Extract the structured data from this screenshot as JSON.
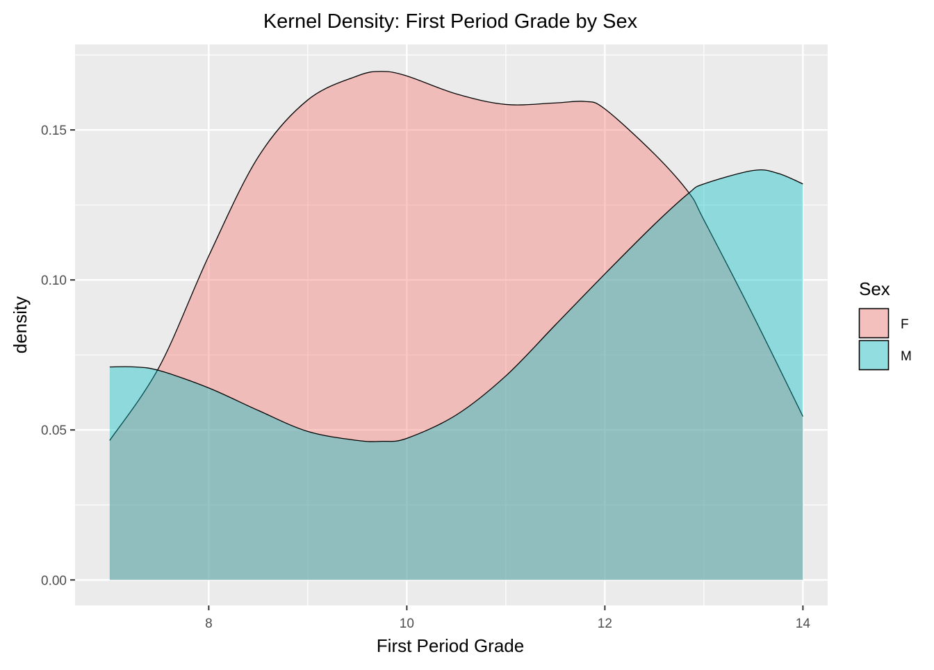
{
  "chart_data": {
    "type": "area",
    "title": "Kernel Density: First Period Grade by Sex",
    "xlabel": "First Period Grade",
    "ylabel": "density",
    "xlim": [
      6.65,
      14.25
    ],
    "ylim": [
      -0.0085,
      0.1785
    ],
    "x_ticks": [
      8,
      10,
      12,
      14
    ],
    "x_tick_labels": [
      "8",
      "10",
      "12",
      "14"
    ],
    "y_ticks": [
      0.0,
      0.05,
      0.1,
      0.15
    ],
    "y_tick_labels": [
      "0.00",
      "0.05",
      "0.10",
      "0.15"
    ],
    "grid": true,
    "legend": {
      "title": "Sex",
      "position": "right",
      "entries": [
        {
          "label": "F",
          "color": "#F8766D"
        },
        {
          "label": "M",
          "color": "#00BFC4"
        }
      ]
    },
    "series": [
      {
        "name": "F",
        "color": "#F8766D",
        "opacity": 0.4,
        "x": [
          7.0,
          7.5,
          8.0,
          8.5,
          9.0,
          9.5,
          9.75,
          10.0,
          10.5,
          11.0,
          11.5,
          11.8,
          12.0,
          12.5,
          12.85,
          13.0,
          13.5,
          14.0
        ],
        "y": [
          0.0465,
          0.071,
          0.108,
          0.141,
          0.16,
          0.168,
          0.1695,
          0.168,
          0.162,
          0.1585,
          0.159,
          0.1595,
          0.157,
          0.142,
          0.129,
          0.12,
          0.088,
          0.0545
        ]
      },
      {
        "name": "M",
        "color": "#00BFC4",
        "opacity": 0.4,
        "x": [
          7.0,
          7.25,
          7.5,
          8.0,
          8.5,
          9.0,
          9.5,
          9.75,
          10.0,
          10.5,
          11.0,
          11.5,
          12.0,
          12.5,
          12.85,
          13.0,
          13.5,
          13.75,
          14.0
        ],
        "y": [
          0.071,
          0.071,
          0.0698,
          0.064,
          0.0565,
          0.0495,
          0.0465,
          0.0462,
          0.0472,
          0.055,
          0.068,
          0.085,
          0.102,
          0.1185,
          0.129,
          0.132,
          0.1365,
          0.1355,
          0.132
        ]
      }
    ]
  }
}
